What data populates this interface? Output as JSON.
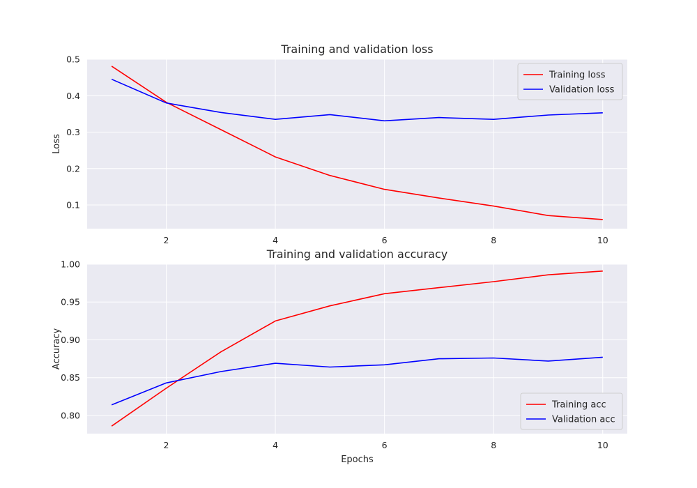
{
  "chart_data": [
    {
      "type": "line",
      "title": "Training and validation loss",
      "xlabel": "",
      "ylabel": "Loss",
      "x": [
        1,
        2,
        3,
        4,
        5,
        6,
        7,
        8,
        9,
        10
      ],
      "xlim": [
        0.55,
        10.45
      ],
      "ylim": [
        0.035,
        0.5
      ],
      "xticks": [
        2,
        4,
        6,
        8,
        10
      ],
      "xtick_labels": [
        "2",
        "4",
        "6",
        "8",
        "10"
      ],
      "yticks": [
        0.1,
        0.2,
        0.3,
        0.4,
        0.5
      ],
      "ytick_labels": [
        "0.1",
        "0.2",
        "0.3",
        "0.4",
        "0.5"
      ],
      "grid": true,
      "legend_position": "top-right",
      "series": [
        {
          "name": "Training loss",
          "color": "#ff0000",
          "values": [
            0.481,
            0.382,
            0.307,
            0.232,
            0.181,
            0.143,
            0.119,
            0.097,
            0.071,
            0.06
          ]
        },
        {
          "name": "Validation loss",
          "color": "#0000ff",
          "values": [
            0.445,
            0.38,
            0.354,
            0.335,
            0.348,
            0.331,
            0.34,
            0.335,
            0.347,
            0.353
          ]
        }
      ]
    },
    {
      "type": "line",
      "title": "Training and validation accuracy",
      "xlabel": "Epochs",
      "ylabel": "Accuracy",
      "x": [
        1,
        2,
        3,
        4,
        5,
        6,
        7,
        8,
        9,
        10
      ],
      "xlim": [
        0.55,
        10.45
      ],
      "ylim": [
        0.776,
        1.0
      ],
      "xticks": [
        2,
        4,
        6,
        8,
        10
      ],
      "xtick_labels": [
        "2",
        "4",
        "6",
        "8",
        "10"
      ],
      "yticks": [
        0.8,
        0.85,
        0.9,
        0.95,
        1.0
      ],
      "ytick_labels": [
        "0.80",
        "0.85",
        "0.90",
        "0.95",
        "1.00"
      ],
      "grid": true,
      "legend_position": "bottom-right",
      "series": [
        {
          "name": "Training acc",
          "color": "#ff0000",
          "values": [
            0.786,
            0.836,
            0.884,
            0.925,
            0.945,
            0.961,
            0.969,
            0.977,
            0.986,
            0.991
          ]
        },
        {
          "name": "Validation acc",
          "color": "#0000ff",
          "values": [
            0.814,
            0.843,
            0.858,
            0.869,
            0.864,
            0.867,
            0.875,
            0.876,
            0.872,
            0.877
          ]
        }
      ]
    }
  ]
}
